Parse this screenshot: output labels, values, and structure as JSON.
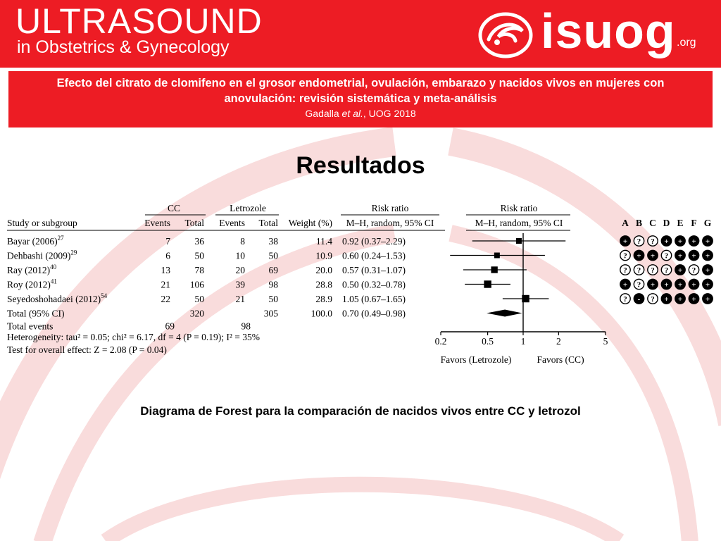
{
  "header": {
    "logo_title": "ULTRASOUND",
    "logo_subtitle": "in Obstetrics & Gynecology",
    "brand": "isuog",
    "brand_suffix": ".org"
  },
  "banner": {
    "title": "Efecto del citrato de clomifeno en el grosor endometrial, ovulación, embarazo y nacidos vivos en mujeres con anovulación: revisión sistemática y meta-análisis",
    "cite_authors": "Gadalla",
    "cite_etal": "et al.",
    "cite_journal": ", UOG 2018"
  },
  "section_title": "Resultados",
  "caption": "Diagrama de Forest para la comparación de nacidos vivos entre CC y letrozol",
  "colors": {
    "brand_red": "#ed1c24",
    "arc_pink": "#f9dcdc"
  },
  "chart_data": {
    "type": "forest",
    "group_headers": {
      "cc": "CC",
      "letrozole": "Letrozole",
      "rr_table": "Risk ratio",
      "rr_plot": "Risk ratio"
    },
    "column_headers": {
      "study": "Study or subgroup",
      "cc_events": "Events",
      "cc_total": "Total",
      "let_events": "Events",
      "let_total": "Total",
      "weight": "Weight (%)",
      "rr_table": "M–H, random, 95% CI",
      "rr_plot": "M–H, random, 95% CI"
    },
    "bias_labels": [
      "A",
      "B",
      "C",
      "D",
      "E",
      "F",
      "G"
    ],
    "studies": [
      {
        "name": "Bayar (2006)",
        "ref": "27",
        "cc_events": "7",
        "cc_total": "36",
        "let_events": "8",
        "let_total": "38",
        "weight": "11.4",
        "rr_text": "0.92 (0.37–2.29)",
        "rr": 0.92,
        "lo": 0.37,
        "hi": 2.29,
        "w": 11.4,
        "bias": [
          "+",
          "?",
          "?",
          "+",
          "+",
          "+",
          "+"
        ]
      },
      {
        "name": "Dehbashi (2009)",
        "ref": "29",
        "cc_events": "6",
        "cc_total": "50",
        "let_events": "10",
        "let_total": "50",
        "weight": "10.9",
        "rr_text": "0.60 (0.24–1.53)",
        "rr": 0.6,
        "lo": 0.24,
        "hi": 1.53,
        "w": 10.9,
        "bias": [
          "?",
          "+",
          "+",
          "?",
          "+",
          "+",
          "+"
        ]
      },
      {
        "name": "Ray (2012)",
        "ref": "40",
        "cc_events": "13",
        "cc_total": "78",
        "let_events": "20",
        "let_total": "69",
        "weight": "20.0",
        "rr_text": "0.57 (0.31–1.07)",
        "rr": 0.57,
        "lo": 0.31,
        "hi": 1.07,
        "w": 20.0,
        "bias": [
          "?",
          "?",
          "?",
          "?",
          "+",
          "?",
          "+"
        ]
      },
      {
        "name": "Roy (2012)",
        "ref": "41",
        "cc_events": "21",
        "cc_total": "106",
        "let_events": "39",
        "let_total": "98",
        "weight": "28.8",
        "rr_text": "0.50 (0.32–0.78)",
        "rr": 0.5,
        "lo": 0.32,
        "hi": 0.78,
        "w": 28.8,
        "bias": [
          "+",
          "?",
          "+",
          "+",
          "+",
          "+",
          "+"
        ]
      },
      {
        "name": "Seyedoshohadaei (2012)",
        "ref": "54",
        "cc_events": "22",
        "cc_total": "50",
        "let_events": "21",
        "let_total": "50",
        "weight": "28.9",
        "rr_text": "1.05 (0.67–1.65)",
        "rr": 1.05,
        "lo": 0.67,
        "hi": 1.65,
        "w": 28.9,
        "bias": [
          "?",
          "-",
          "?",
          "+",
          "+",
          "+",
          "+"
        ]
      }
    ],
    "total": {
      "label": "Total (95% CI)",
      "cc_total": "320",
      "let_total": "305",
      "weight": "100.0",
      "rr_text": "0.70 (0.49–0.98)",
      "rr": 0.7,
      "lo": 0.49,
      "hi": 0.98
    },
    "total_events": {
      "label": "Total events",
      "cc": "69",
      "let": "98"
    },
    "heterogeneity": "Heterogeneity: tau² = 0.05; chi² = 6.17, df = 4 (P = 0.19); I² = 35%",
    "overall_effect": "Test for overall effect: Z = 2.08 (P = 0.04)",
    "x_axis": {
      "scale": "log",
      "min": 0.2,
      "max": 5,
      "ticks": [
        0.2,
        0.5,
        1,
        2,
        5
      ],
      "tick_labels": [
        "0.2",
        "0.5",
        "1",
        "2",
        "5"
      ]
    },
    "favors_left": "Favors (Letrozole)",
    "favors_right": "Favors (CC)"
  }
}
